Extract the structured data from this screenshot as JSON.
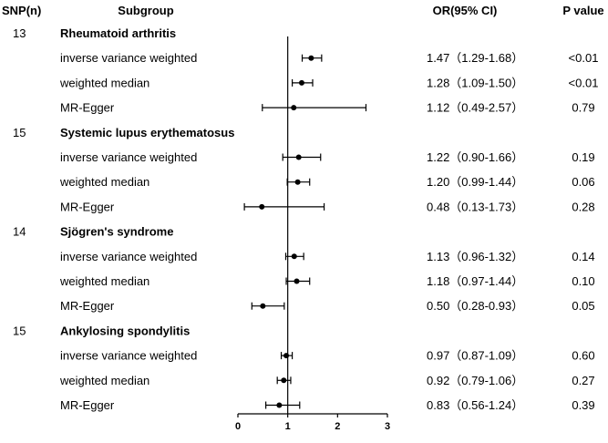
{
  "chart_data": {
    "type": "forest",
    "headers": {
      "snp": "SNP(n)",
      "subgroup": "Subgroup",
      "or": "OR(95% CI)",
      "p": "P value"
    },
    "xlim": [
      0,
      3
    ],
    "x_ticks": [
      "0",
      "1",
      "2",
      "3"
    ],
    "reference_line": 1,
    "groups": [
      {
        "snp": "13",
        "name": "Rheumatoid arthritis",
        "rows": [
          {
            "method": "inverse variance weighted",
            "or": 1.47,
            "lo": 1.29,
            "hi": 1.68,
            "ci_text": "1.47（1.29-1.68）",
            "p": "<0.01"
          },
          {
            "method": "weighted median",
            "or": 1.28,
            "lo": 1.09,
            "hi": 1.5,
            "ci_text": "1.28（1.09-1.50）",
            "p": "<0.01"
          },
          {
            "method": "MR-Egger",
            "or": 1.12,
            "lo": 0.49,
            "hi": 2.57,
            "ci_text": "1.12（0.49-2.57）",
            "p": "0.79"
          }
        ]
      },
      {
        "snp": "15",
        "name": "Systemic lupus erythematosus",
        "rows": [
          {
            "method": "inverse variance weighted",
            "or": 1.22,
            "lo": 0.9,
            "hi": 1.66,
            "ci_text": "1.22（0.90-1.66）",
            "p": "0.19"
          },
          {
            "method": "weighted median",
            "or": 1.2,
            "lo": 0.99,
            "hi": 1.44,
            "ci_text": "1.20（0.99-1.44）",
            "p": "0.06"
          },
          {
            "method": "MR-Egger",
            "or": 0.48,
            "lo": 0.13,
            "hi": 1.73,
            "ci_text": "0.48（0.13-1.73）",
            "p": "0.28"
          }
        ]
      },
      {
        "snp": "14",
        "name": "Sjögren's syndrome",
        "rows": [
          {
            "method": "inverse variance weighted",
            "or": 1.13,
            "lo": 0.96,
            "hi": 1.32,
            "ci_text": "1.13（0.96-1.32）",
            "p": "0.14"
          },
          {
            "method": "weighted median",
            "or": 1.18,
            "lo": 0.97,
            "hi": 1.44,
            "ci_text": "1.18（0.97-1.44）",
            "p": "0.10"
          },
          {
            "method": "MR-Egger",
            "or": 0.5,
            "lo": 0.28,
            "hi": 0.93,
            "ci_text": "0.50（0.28-0.93）",
            "p": "0.05"
          }
        ]
      },
      {
        "snp": "15",
        "name": "Ankylosing spondylitis",
        "rows": [
          {
            "method": "inverse variance weighted",
            "or": 0.97,
            "lo": 0.87,
            "hi": 1.09,
            "ci_text": "0.97（0.87-1.09）",
            "p": "0.60"
          },
          {
            "method": "weighted median",
            "or": 0.92,
            "lo": 0.79,
            "hi": 1.06,
            "ci_text": "0.92（0.79-1.06）",
            "p": "0.27"
          },
          {
            "method": "MR-Egger",
            "or": 0.83,
            "lo": 0.56,
            "hi": 1.24,
            "ci_text": "0.83（0.56-1.24）",
            "p": "0.39"
          }
        ]
      }
    ]
  }
}
